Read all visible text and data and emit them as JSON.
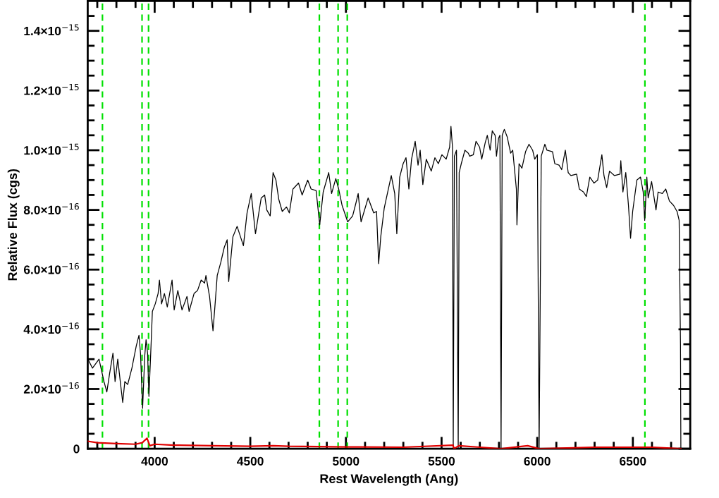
{
  "chart_data": {
    "type": "line",
    "xlabel": "Rest Wavelength (Ang)",
    "ylabel": "Relative Flux (cgs)",
    "xlim": [
      3650,
      6800
    ],
    "ylim": [
      0,
      1.5e-15
    ],
    "xticks": [
      {
        "value": 3700,
        "label": null
      },
      {
        "value": 3800,
        "label": null
      },
      {
        "value": 3900,
        "label": null
      },
      4000,
      {
        "value": 4100,
        "label": null
      },
      {
        "value": 4200,
        "label": null
      },
      {
        "value": 4300,
        "label": null
      },
      {
        "value": 4400,
        "label": null
      },
      4500,
      {
        "value": 4600,
        "label": null
      },
      {
        "value": 4700,
        "label": null
      },
      {
        "value": 4800,
        "label": null
      },
      {
        "value": 4900,
        "label": null
      },
      5000,
      {
        "value": 5100,
        "label": null
      },
      {
        "value": 5200,
        "label": null
      },
      {
        "value": 5300,
        "label": null
      },
      {
        "value": 5400,
        "label": null
      },
      5500,
      {
        "value": 5600,
        "label": null
      },
      {
        "value": 5700,
        "label": null
      },
      {
        "value": 5800,
        "label": null
      },
      {
        "value": 5900,
        "label": null
      },
      6000,
      {
        "value": 6100,
        "label": null
      },
      {
        "value": 6200,
        "label": null
      },
      {
        "value": 6300,
        "label": null
      },
      {
        "value": 6400,
        "label": null
      },
      6500,
      {
        "value": 6600,
        "label": null
      },
      {
        "value": 6700,
        "label": null
      }
    ],
    "yticks": [
      0,
      {
        "value": 5e-17,
        "label": null
      },
      {
        "value": 1e-16,
        "label": null
      },
      {
        "value": 1.5e-16,
        "label": null
      },
      {
        "value": 2e-16,
        "label": "2.0×10$^{−16}$"
      },
      {
        "value": 2.5e-16,
        "label": null
      },
      {
        "value": 3e-16,
        "label": null
      },
      {
        "value": 3.5e-16,
        "label": null
      },
      {
        "value": 4e-16,
        "label": "4.0×10$^{−16}$"
      },
      {
        "value": 4.5e-16,
        "label": null
      },
      {
        "value": 5e-16,
        "label": null
      },
      {
        "value": 5.5e-16,
        "label": null
      },
      {
        "value": 6e-16,
        "label": "6.0×10$^{−16}$"
      },
      {
        "value": 6.5e-16,
        "label": null
      },
      {
        "value": 7e-16,
        "label": null
      },
      {
        "value": 7.5e-16,
        "label": null
      },
      {
        "value": 8e-16,
        "label": "8.0×10$^{−16}$"
      },
      {
        "value": 8.5e-16,
        "label": null
      },
      {
        "value": 9e-16,
        "label": null
      },
      {
        "value": 9.5e-16,
        "label": null
      },
      {
        "value": 1e-15,
        "label": "1.0×10$^{−15}$"
      },
      {
        "value": 1.05e-15,
        "label": null
      },
      {
        "value": 1.1e-15,
        "label": null
      },
      {
        "value": 1.15e-15,
        "label": null
      },
      {
        "value": 1.2e-15,
        "label": "1.2×10$^{−15}$"
      },
      {
        "value": 1.25e-15,
        "label": null
      },
      {
        "value": 1.3e-15,
        "label": null
      },
      {
        "value": 1.35e-15,
        "label": null
      },
      {
        "value": 1.4e-15,
        "label": "1.4×10$^{−15}$"
      },
      {
        "value": 1.45e-15,
        "label": null
      }
    ],
    "line_style": "solid",
    "marker": "none",
    "series": [
      {
        "color": "#000000",
        "x": [
          3651,
          3675,
          3709,
          3735,
          3750,
          3764,
          3782,
          3793,
          3807,
          3822,
          3833,
          3844,
          3859,
          3881,
          3904,
          3918,
          3926,
          3937,
          3948,
          3955,
          3963,
          3970,
          3981,
          3988,
          4003,
          4018,
          4025,
          4036,
          4051,
          4066,
          4091,
          4102,
          4121,
          4143,
          4169,
          4180,
          4206,
          4224,
          4243,
          4261,
          4268,
          4287,
          4305,
          4316,
          4327,
          4346,
          4364,
          4379,
          4387,
          4409,
          4431,
          4464,
          4483,
          4505,
          4527,
          4557,
          4575,
          4586,
          4604,
          4619,
          4634,
          4649,
          4667,
          4689,
          4704,
          4723,
          4752,
          4771,
          4800,
          4818,
          4844,
          4863,
          4881,
          4910,
          4925,
          4947,
          4962,
          4980,
          5009,
          5035,
          5053,
          5064,
          5079,
          5116,
          5145,
          5160,
          5171,
          5182,
          5200,
          5215,
          5237,
          5255,
          5266,
          5281,
          5299,
          5314,
          5329,
          5343,
          5362,
          5377,
          5388,
          5402,
          5420,
          5446,
          5465,
          5483,
          5502,
          5524,
          5542,
          5549,
          5557,
          5561,
          5567,
          5578,
          5587,
          5592,
          5603,
          5622,
          5640,
          5647,
          5666,
          5680,
          5699,
          5710,
          5728,
          5739,
          5754,
          5765,
          5780,
          5787,
          5798,
          5805,
          5811,
          5817,
          5828,
          5843,
          5861,
          5872,
          5891,
          5894,
          5905,
          5920,
          5939,
          5957,
          5976,
          5987,
          6001,
          6010,
          6021,
          6040,
          6051,
          6080,
          6092,
          6114,
          6128,
          6147,
          6162,
          6176,
          6206,
          6220,
          6242,
          6257,
          6275,
          6297,
          6316,
          6338,
          6349,
          6363,
          6378,
          6404,
          6433,
          6437,
          6448,
          6463,
          6477,
          6488,
          6499,
          6521,
          6540,
          6554,
          6562,
          6573,
          6580,
          6598,
          6621,
          6632,
          6654,
          6672,
          6691,
          6713,
          6731,
          6742,
          6749,
          6751
        ],
        "values": [
          3e-16,
          2.7e-16,
          3e-16,
          2.25e-16,
          1.9e-16,
          2.5e-16,
          3.2e-16,
          2.25e-16,
          3e-16,
          2.15e-16,
          1.55e-16,
          2.25e-16,
          2.15e-16,
          2.7e-16,
          3.45e-16,
          3.8e-16,
          3.2e-16,
          1.35e-16,
          3.1e-16,
          3.65e-16,
          3.2e-16,
          1.75e-16,
          3.45e-16,
          4.6e-16,
          4.85e-16,
          5.2e-16,
          5.65e-16,
          4.85e-16,
          5.2e-16,
          4.75e-16,
          5.65e-16,
          4.65e-16,
          5.3e-16,
          4.65e-16,
          5.1e-16,
          4.6e-16,
          5.2e-16,
          5.3e-16,
          5.65e-16,
          5.55e-16,
          5.8e-16,
          5.1e-16,
          3.95e-16,
          4.85e-16,
          5.8e-16,
          6.25e-16,
          6.75e-16,
          7e-16,
          5.6e-16,
          7.1e-16,
          7.45e-16,
          6.8e-16,
          7.9e-16,
          8.55e-16,
          7.2e-16,
          8.4e-16,
          8.5e-16,
          8e-16,
          7.8e-16,
          9.25e-16,
          9e-16,
          8.35e-16,
          7.95e-16,
          8.1e-16,
          7.9e-16,
          8.7e-16,
          8.9e-16,
          8.5e-16,
          9e-16,
          8.7e-16,
          8.65e-16,
          7.5e-16,
          8.6e-16,
          9.25e-16,
          8.55e-16,
          9.05e-16,
          8.7e-16,
          8.15e-16,
          7.6e-16,
          7.8e-16,
          8.25e-16,
          8.55e-16,
          7.6e-16,
          8.4e-16,
          7.9e-16,
          7.95e-16,
          6.2e-16,
          7.1e-16,
          8.05e-16,
          8.5e-16,
          9.15e-16,
          8.55e-16,
          7.2e-16,
          9.1e-16,
          9.55e-16,
          9.75e-16,
          8.7e-16,
          9.7e-16,
          1.03e-15,
          9.5e-16,
          1e-15,
          8.85e-16,
          9.7e-16,
          9.3e-16,
          9.75e-16,
          9.55e-16,
          9.85e-16,
          9.7e-16,
          1.01e-15,
          1.08e-15,
          1.01e-15,
          0,
          9.8e-16,
          1e-15,
          0,
          9.25e-16,
          9.55e-16,
          1e-15,
          9.9e-16,
          9.8e-16,
          9.85e-16,
          1.03e-15,
          1.01e-15,
          9.7e-16,
          1.025e-15,
          1.05e-15,
          1e-15,
          1.065e-15,
          1.05e-15,
          9.8e-16,
          1.04e-15,
          1.05e-15,
          0,
          1.05e-15,
          1.07e-15,
          1.045e-15,
          9.9e-16,
          1e-15,
          8.7e-16,
          7.5e-16,
          9.55e-16,
          9.4e-16,
          9.95e-16,
          1.02e-15,
          1e-15,
          9.7e-16,
          9.85e-16,
          0,
          9.8e-16,
          1.02e-15,
          1e-15,
          9.95e-16,
          9.55e-16,
          9.5e-16,
          9.35e-16,
          1e-15,
          9.25e-16,
          9.15e-16,
          9.2e-16,
          8.7e-16,
          8.6e-16,
          8.45e-16,
          9.1e-16,
          8.9e-16,
          9e-16,
          9.85e-16,
          9.15e-16,
          8.75e-16,
          9.3e-16,
          9.15e-16,
          9.2e-16,
          9.65e-16,
          8.6e-16,
          9.25e-16,
          8.15e-16,
          7.05e-16,
          7.95e-16,
          9e-16,
          9.1e-16,
          8.6e-16,
          7.65e-16,
          9.1e-16,
          8.4e-16,
          8.95e-16,
          8e-16,
          8.6e-16,
          8.55e-16,
          8.7e-16,
          8.3e-16,
          8.15e-16,
          7.95e-16,
          7.65e-16,
          3.5e-16,
          0
        ]
      },
      {
        "color": "#e00000",
        "x": [
          3651,
          3700,
          3800,
          3900,
          3935,
          3960,
          3975,
          4000,
          4100,
          4300,
          4500,
          4620,
          4700,
          5000,
          5300,
          5560,
          5565,
          5590,
          5700,
          5811,
          5950,
          6010,
          6300,
          6600,
          6751
        ],
        "values": [
          2.5e-17,
          2e-17,
          1.7e-17,
          1.5e-17,
          2e-17,
          3.5e-17,
          1e-17,
          1.5e-17,
          1.2e-17,
          1e-17,
          8e-18,
          1e-17,
          8e-18,
          6e-18,
          5e-18,
          1.2e-17,
          0,
          1e-17,
          5e-18,
          0,
          1e-17,
          0,
          5e-18,
          5e-18,
          0
        ]
      }
    ],
    "ref_lines": [
      {
        "axis": "x",
        "value": 3727,
        "color": "#00e000",
        "line_style": "dashed"
      },
      {
        "axis": "x",
        "value": 3934,
        "color": "#00e000",
        "line_style": "dashed"
      },
      {
        "axis": "x",
        "value": 3968,
        "color": "#00e000",
        "line_style": "dashed"
      },
      {
        "axis": "x",
        "value": 4861,
        "color": "#00e000",
        "line_style": "dashed"
      },
      {
        "axis": "x",
        "value": 4959,
        "color": "#00e000",
        "line_style": "dashed"
      },
      {
        "axis": "x",
        "value": 5007,
        "color": "#00e000",
        "line_style": "dashed"
      },
      {
        "axis": "x",
        "value": 6563,
        "color": "#00e000",
        "line_style": "dashed"
      }
    ]
  }
}
